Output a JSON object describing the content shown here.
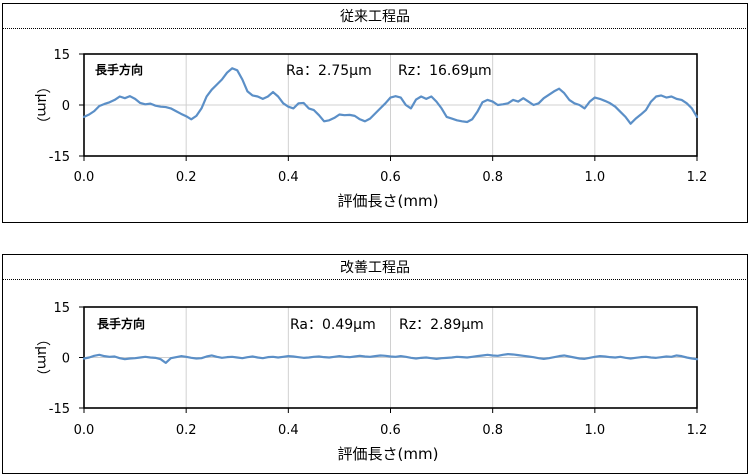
{
  "chart_data": [
    {
      "type": "line",
      "title": "従来工程品",
      "xlabel": "評価長さ(mm)",
      "ylabel": "（μｍ）",
      "xlim": [
        0.0,
        1.2
      ],
      "ylim": [
        -15,
        15
      ],
      "x_ticks": [
        "0.0",
        "0.2",
        "0.4",
        "0.6",
        "0.8",
        "1.0",
        "1.2"
      ],
      "y_ticks": [
        "15",
        "0",
        "-15"
      ],
      "grid": "vertical",
      "annotations": {
        "direction": "長手方向",
        "ra": "Ra：2.75μm",
        "rz": "Rz：16.69μm"
      },
      "color": "#5b8fc7",
      "series": [
        {
          "points": [
            [
              0.0,
              -3.5
            ],
            [
              0.01,
              -2.8
            ],
            [
              0.02,
              -1.8
            ],
            [
              0.03,
              -0.3
            ],
            [
              0.04,
              0.3
            ],
            [
              0.05,
              0.8
            ],
            [
              0.06,
              1.5
            ],
            [
              0.07,
              2.5
            ],
            [
              0.08,
              2.0
            ],
            [
              0.09,
              2.6
            ],
            [
              0.1,
              1.8
            ],
            [
              0.11,
              0.6
            ],
            [
              0.12,
              0.2
            ],
            [
              0.13,
              0.4
            ],
            [
              0.14,
              -0.2
            ],
            [
              0.15,
              -0.5
            ],
            [
              0.16,
              -0.6
            ],
            [
              0.17,
              -1.0
            ],
            [
              0.18,
              -1.8
            ],
            [
              0.19,
              -2.6
            ],
            [
              0.2,
              -3.3
            ],
            [
              0.21,
              -4.2
            ],
            [
              0.22,
              -3.2
            ],
            [
              0.23,
              -1.0
            ],
            [
              0.24,
              2.5
            ],
            [
              0.25,
              4.5
            ],
            [
              0.26,
              6.0
            ],
            [
              0.27,
              7.5
            ],
            [
              0.28,
              9.5
            ],
            [
              0.29,
              10.8
            ],
            [
              0.3,
              10.2
            ],
            [
              0.31,
              7.5
            ],
            [
              0.32,
              4.0
            ],
            [
              0.33,
              2.8
            ],
            [
              0.34,
              2.5
            ],
            [
              0.35,
              1.8
            ],
            [
              0.36,
              2.5
            ],
            [
              0.37,
              3.8
            ],
            [
              0.38,
              2.5
            ],
            [
              0.39,
              0.5
            ],
            [
              0.4,
              -0.5
            ],
            [
              0.41,
              -1.0
            ],
            [
              0.42,
              0.5
            ],
            [
              0.43,
              0.6
            ],
            [
              0.44,
              -1.0
            ],
            [
              0.45,
              -1.5
            ],
            [
              0.46,
              -3.0
            ],
            [
              0.47,
              -4.8
            ],
            [
              0.48,
              -4.5
            ],
            [
              0.49,
              -3.8
            ],
            [
              0.5,
              -2.8
            ],
            [
              0.51,
              -3.0
            ],
            [
              0.52,
              -2.9
            ],
            [
              0.53,
              -3.2
            ],
            [
              0.54,
              -4.2
            ],
            [
              0.55,
              -4.8
            ],
            [
              0.56,
              -4.0
            ],
            [
              0.57,
              -2.5
            ],
            [
              0.58,
              -1.0
            ],
            [
              0.59,
              0.5
            ],
            [
              0.6,
              2.2
            ],
            [
              0.61,
              2.6
            ],
            [
              0.62,
              2.2
            ],
            [
              0.63,
              0.0
            ],
            [
              0.64,
              -1.0
            ],
            [
              0.65,
              1.6
            ],
            [
              0.66,
              2.5
            ],
            [
              0.67,
              1.8
            ],
            [
              0.68,
              2.5
            ],
            [
              0.69,
              1.0
            ],
            [
              0.7,
              -1.0
            ],
            [
              0.71,
              -3.5
            ],
            [
              0.72,
              -4.0
            ],
            [
              0.73,
              -4.5
            ],
            [
              0.74,
              -4.8
            ],
            [
              0.75,
              -5.0
            ],
            [
              0.76,
              -4.2
            ],
            [
              0.77,
              -2.0
            ],
            [
              0.78,
              0.8
            ],
            [
              0.79,
              1.5
            ],
            [
              0.8,
              1.0
            ],
            [
              0.81,
              0.0
            ],
            [
              0.82,
              0.2
            ],
            [
              0.83,
              0.5
            ],
            [
              0.84,
              1.5
            ],
            [
              0.85,
              1.0
            ],
            [
              0.86,
              2.0
            ],
            [
              0.87,
              1.0
            ],
            [
              0.88,
              0.0
            ],
            [
              0.89,
              0.5
            ],
            [
              0.9,
              2.0
            ],
            [
              0.91,
              3.0
            ],
            [
              0.92,
              4.0
            ],
            [
              0.93,
              4.8
            ],
            [
              0.94,
              3.5
            ],
            [
              0.95,
              1.5
            ],
            [
              0.96,
              0.5
            ],
            [
              0.97,
              0.0
            ],
            [
              0.98,
              -1.0
            ],
            [
              0.99,
              1.0
            ],
            [
              1.0,
              2.2
            ],
            [
              1.01,
              1.8
            ],
            [
              1.02,
              1.2
            ],
            [
              1.03,
              0.5
            ],
            [
              1.04,
              -0.5
            ],
            [
              1.05,
              -2.0
            ],
            [
              1.06,
              -3.5
            ],
            [
              1.07,
              -5.5
            ],
            [
              1.08,
              -4.0
            ],
            [
              1.09,
              -2.8
            ],
            [
              1.1,
              -1.5
            ],
            [
              1.11,
              1.0
            ],
            [
              1.12,
              2.5
            ],
            [
              1.13,
              2.8
            ],
            [
              1.14,
              2.2
            ],
            [
              1.15,
              2.5
            ],
            [
              1.16,
              1.8
            ],
            [
              1.17,
              1.5
            ],
            [
              1.18,
              0.5
            ],
            [
              1.19,
              -1.0
            ],
            [
              1.2,
              -3.5
            ]
          ]
        }
      ]
    },
    {
      "type": "line",
      "title": "改善工程品",
      "xlabel": "評価長さ(mm)",
      "ylabel": "（μｍ）",
      "xlim": [
        0.0,
        1.2
      ],
      "ylim": [
        -15,
        15
      ],
      "x_ticks": [
        "0.0",
        "0.2",
        "0.4",
        "0.6",
        "0.8",
        "1.0",
        "1.2"
      ],
      "y_ticks": [
        "15",
        "0",
        "-15"
      ],
      "grid": "vertical",
      "annotations": {
        "direction": "長手方向",
        "ra": "Ra：0.49μm",
        "rz": "Rz：2.89μm"
      },
      "color": "#5b8fc7",
      "series": [
        {
          "points": [
            [
              0.0,
              -0.3
            ],
            [
              0.01,
              0.0
            ],
            [
              0.02,
              0.5
            ],
            [
              0.03,
              0.8
            ],
            [
              0.04,
              0.4
            ],
            [
              0.05,
              0.2
            ],
            [
              0.06,
              0.3
            ],
            [
              0.07,
              -0.2
            ],
            [
              0.08,
              -0.5
            ],
            [
              0.09,
              -0.3
            ],
            [
              0.1,
              -0.2
            ],
            [
              0.11,
              0.0
            ],
            [
              0.12,
              0.2
            ],
            [
              0.13,
              0.0
            ],
            [
              0.14,
              -0.1
            ],
            [
              0.15,
              -0.5
            ],
            [
              0.16,
              -1.6
            ],
            [
              0.17,
              -0.2
            ],
            [
              0.18,
              0.1
            ],
            [
              0.19,
              0.4
            ],
            [
              0.2,
              0.2
            ],
            [
              0.21,
              -0.1
            ],
            [
              0.22,
              -0.3
            ],
            [
              0.23,
              -0.2
            ],
            [
              0.24,
              0.3
            ],
            [
              0.25,
              0.6
            ],
            [
              0.26,
              0.2
            ],
            [
              0.27,
              -0.1
            ],
            [
              0.28,
              0.1
            ],
            [
              0.29,
              0.2
            ],
            [
              0.3,
              0.0
            ],
            [
              0.31,
              -0.2
            ],
            [
              0.32,
              0.1
            ],
            [
              0.33,
              0.3
            ],
            [
              0.34,
              0.0
            ],
            [
              0.35,
              -0.2
            ],
            [
              0.36,
              0.1
            ],
            [
              0.37,
              0.2
            ],
            [
              0.38,
              0.0
            ],
            [
              0.39,
              0.2
            ],
            [
              0.4,
              0.4
            ],
            [
              0.41,
              0.3
            ],
            [
              0.42,
              0.1
            ],
            [
              0.43,
              -0.1
            ],
            [
              0.44,
              0.0
            ],
            [
              0.45,
              0.2
            ],
            [
              0.46,
              0.3
            ],
            [
              0.47,
              0.1
            ],
            [
              0.48,
              0.0
            ],
            [
              0.49,
              0.2
            ],
            [
              0.5,
              0.4
            ],
            [
              0.51,
              0.2
            ],
            [
              0.52,
              0.1
            ],
            [
              0.53,
              0.3
            ],
            [
              0.54,
              0.5
            ],
            [
              0.55,
              0.3
            ],
            [
              0.56,
              0.2
            ],
            [
              0.57,
              0.4
            ],
            [
              0.58,
              0.6
            ],
            [
              0.59,
              0.5
            ],
            [
              0.6,
              0.3
            ],
            [
              0.61,
              0.2
            ],
            [
              0.62,
              0.4
            ],
            [
              0.63,
              0.2
            ],
            [
              0.64,
              -0.1
            ],
            [
              0.65,
              -0.3
            ],
            [
              0.66,
              -0.1
            ],
            [
              0.67,
              0.0
            ],
            [
              0.68,
              -0.2
            ],
            [
              0.69,
              -0.4
            ],
            [
              0.7,
              -0.2
            ],
            [
              0.71,
              -0.1
            ],
            [
              0.72,
              0.0
            ],
            [
              0.73,
              0.2
            ],
            [
              0.74,
              0.1
            ],
            [
              0.75,
              0.0
            ],
            [
              0.76,
              0.2
            ],
            [
              0.77,
              0.4
            ],
            [
              0.78,
              0.6
            ],
            [
              0.79,
              0.8
            ],
            [
              0.8,
              0.6
            ],
            [
              0.81,
              0.5
            ],
            [
              0.82,
              0.8
            ],
            [
              0.83,
              1.0
            ],
            [
              0.84,
              0.9
            ],
            [
              0.85,
              0.7
            ],
            [
              0.86,
              0.5
            ],
            [
              0.87,
              0.3
            ],
            [
              0.88,
              0.1
            ],
            [
              0.89,
              -0.2
            ],
            [
              0.9,
              -0.4
            ],
            [
              0.91,
              -0.2
            ],
            [
              0.92,
              0.1
            ],
            [
              0.93,
              0.4
            ],
            [
              0.94,
              0.6
            ],
            [
              0.95,
              0.3
            ],
            [
              0.96,
              0.0
            ],
            [
              0.97,
              -0.3
            ],
            [
              0.98,
              -0.4
            ],
            [
              0.99,
              -0.1
            ],
            [
              1.0,
              0.2
            ],
            [
              1.01,
              0.4
            ],
            [
              1.02,
              0.3
            ],
            [
              1.03,
              0.1
            ],
            [
              1.04,
              0.0
            ],
            [
              1.05,
              0.2
            ],
            [
              1.06,
              -0.1
            ],
            [
              1.07,
              -0.3
            ],
            [
              1.08,
              -0.1
            ],
            [
              1.09,
              0.1
            ],
            [
              1.1,
              0.2
            ],
            [
              1.11,
              0.0
            ],
            [
              1.12,
              -0.1
            ],
            [
              1.13,
              0.1
            ],
            [
              1.14,
              0.3
            ],
            [
              1.15,
              0.2
            ],
            [
              1.16,
              0.6
            ],
            [
              1.17,
              0.4
            ],
            [
              1.18,
              0.0
            ],
            [
              1.19,
              -0.3
            ],
            [
              1.2,
              -0.5
            ]
          ]
        }
      ]
    }
  ]
}
